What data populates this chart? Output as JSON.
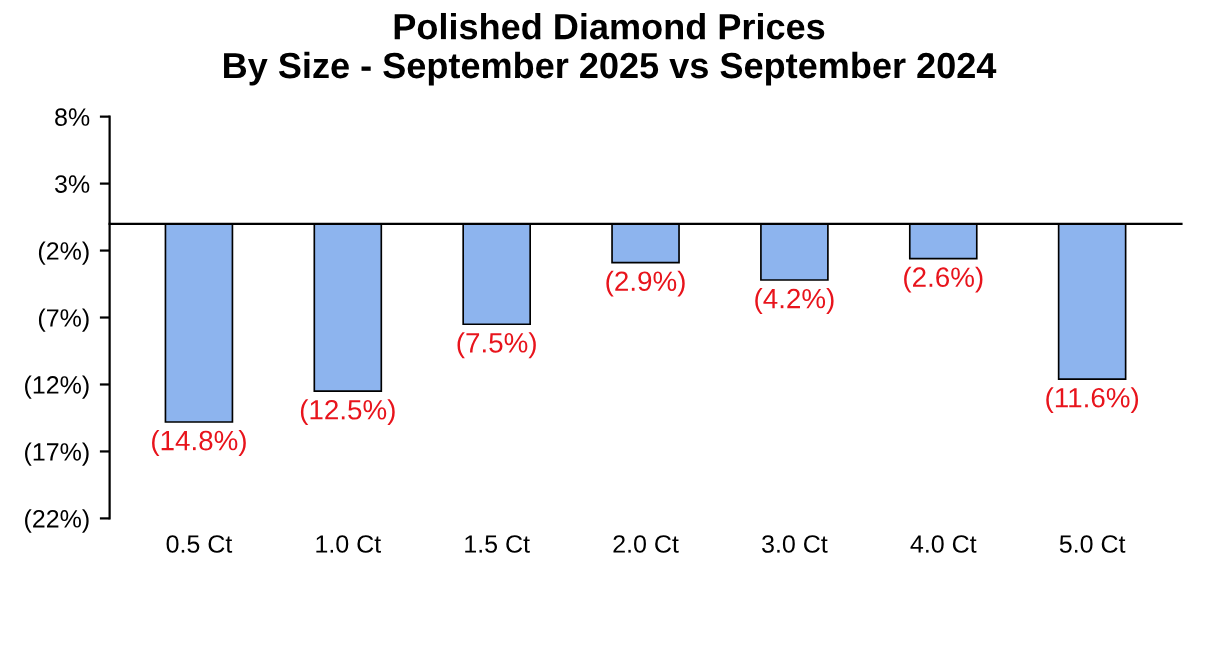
{
  "chart_data": {
    "type": "bar",
    "title": "Polished Diamond Prices\nBy Size - September 2025 vs September 2024",
    "categories": [
      "0.5 Ct",
      "1.0 Ct",
      "1.5 Ct",
      "2.0 Ct",
      "3.0 Ct",
      "4.0 Ct",
      "5.0 Ct"
    ],
    "values": [
      -14.8,
      -12.5,
      -7.5,
      -2.9,
      -4.2,
      -2.6,
      -11.6
    ],
    "value_labels": [
      "(14.8%)",
      "(12.5%)",
      "(7.5%)",
      "(2.9%)",
      "(4.2%)",
      "(2.6%)",
      "(11.6%)"
    ],
    "color": "#8db4ee",
    "ylim": [
      -22,
      8
    ],
    "yticks": [
      {
        "value": 8,
        "label": "8%"
      },
      {
        "value": 3,
        "label": "3%"
      },
      {
        "value": -2,
        "label": "(2%)"
      },
      {
        "value": -7,
        "label": "(7%)"
      },
      {
        "value": -12,
        "label": "(12%)"
      },
      {
        "value": -17,
        "label": "(17%)"
      },
      {
        "value": -22,
        "label": "(22%)"
      }
    ],
    "grid": false
  }
}
